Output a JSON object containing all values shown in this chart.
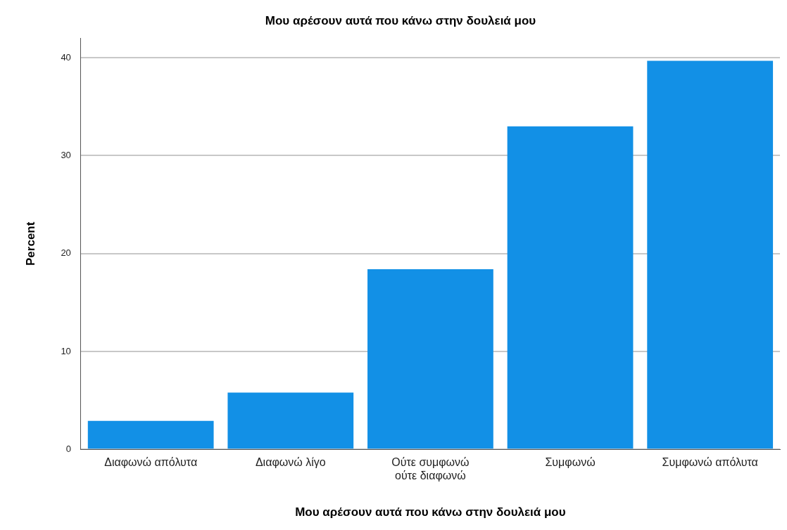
{
  "chart_data": {
    "type": "bar",
    "title": "Μου αρέσουν αυτά που κάνω στην δουλειά μου",
    "xlabel": "Μου αρέσουν αυτά που κάνω στην δουλειά μου",
    "ylabel": "Percent",
    "categories": [
      "Διαφωνώ απόλυτα",
      "Διαφωνώ λίγο",
      "Ούτε συμφωνώ ούτε διαφωνώ",
      "Συμφωνώ",
      "Συμφωνώ απόλυτα"
    ],
    "values": [
      2.9,
      5.8,
      18.4,
      33.0,
      39.7
    ],
    "color": "#1290e6",
    "ylim": [
      0,
      42
    ],
    "yticks": [
      0,
      10,
      20,
      30,
      40
    ],
    "grid": "y",
    "legend": false
  }
}
